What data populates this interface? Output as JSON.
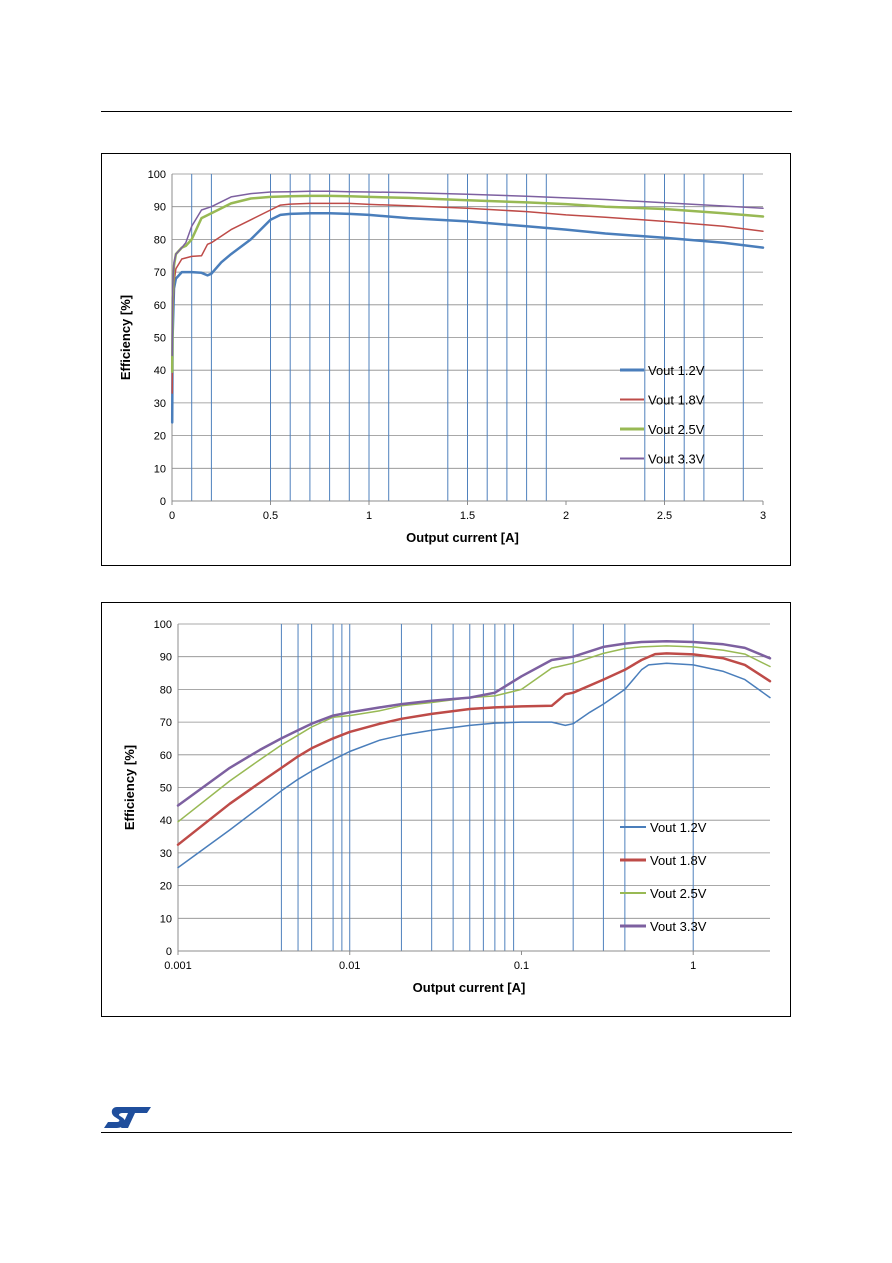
{
  "colors": {
    "v12": "#4a7ebb",
    "v18": "#be4b48",
    "v25": "#98b954",
    "v33": "#7d60a0",
    "grid": "#8c8c8c",
    "vline": "#4f81bd"
  },
  "chart_data": [
    {
      "type": "line",
      "xscale": "linear",
      "xlabel": "Output current [A]",
      "ylabel": "Efficiency [%]",
      "xlim": [
        0,
        3
      ],
      "ylim": [
        0,
        100
      ],
      "xticks": [
        "0",
        "0.5",
        "1",
        "1.5",
        "2",
        "2.5",
        "3"
      ],
      "yticks": [
        "0",
        "10",
        "20",
        "30",
        "40",
        "50",
        "60",
        "70",
        "80",
        "90",
        "100"
      ],
      "grid": true,
      "legend": "center-right",
      "vlines": [
        0.1,
        0.2,
        0.5,
        0.6,
        0.7,
        0.8,
        0.9,
        1.0,
        1.1,
        1.4,
        1.5,
        1.6,
        1.7,
        1.8,
        1.9,
        2.4,
        2.5,
        2.6,
        2.7,
        2.9
      ],
      "series": [
        {
          "name": "Vout 1.2V",
          "color": "#4a7ebb",
          "width": 2.5,
          "x": [
            0.001,
            0.003,
            0.01,
            0.02,
            0.05,
            0.1,
            0.15,
            0.18,
            0.2,
            0.25,
            0.3,
            0.4,
            0.5,
            0.55,
            0.6,
            0.7,
            0.8,
            0.9,
            1.0,
            1.2,
            1.5,
            1.8,
            2.0,
            2.2,
            2.5,
            2.8,
            3.0
          ],
          "y": [
            24,
            50,
            65,
            68,
            70,
            70,
            69.8,
            69,
            69.5,
            73,
            75.5,
            80,
            86,
            87.5,
            87.8,
            88,
            88,
            87.8,
            87.5,
            86.5,
            85.5,
            84,
            83,
            81.8,
            80.5,
            79,
            77.5
          ]
        },
        {
          "name": "Vout 1.8V",
          "color": "#be4b48",
          "width": 1.5,
          "x": [
            0.001,
            0.003,
            0.01,
            0.02,
            0.05,
            0.1,
            0.15,
            0.18,
            0.2,
            0.3,
            0.4,
            0.5,
            0.55,
            0.6,
            0.7,
            0.8,
            0.9,
            1.0,
            1.2,
            1.5,
            1.8,
            2.0,
            2.2,
            2.5,
            2.8,
            3.0
          ],
          "y": [
            33,
            55,
            67,
            71,
            74,
            74.8,
            75,
            78.5,
            79,
            83,
            86,
            89,
            90.5,
            90.8,
            91,
            91,
            91,
            90.7,
            90.3,
            89.5,
            88.5,
            87.5,
            86.8,
            85.5,
            84,
            82.5
          ]
        },
        {
          "name": "Vout 2.5V",
          "color": "#98b954",
          "width": 2.5,
          "x": [
            0.001,
            0.003,
            0.01,
            0.02,
            0.05,
            0.07,
            0.1,
            0.15,
            0.2,
            0.3,
            0.4,
            0.5,
            0.6,
            0.7,
            0.8,
            0.9,
            1.0,
            1.2,
            1.5,
            1.8,
            2.0,
            2.2,
            2.5,
            2.8,
            3.0
          ],
          "y": [
            39.5,
            62,
            72,
            75.5,
            77.5,
            78,
            80,
            86.5,
            88,
            91,
            92.5,
            93,
            93.2,
            93.3,
            93.3,
            93.2,
            93,
            92.7,
            92,
            91.3,
            90.8,
            90,
            89.3,
            88,
            87
          ]
        },
        {
          "name": "Vout 3.3V",
          "color": "#7d60a0",
          "width": 1.5,
          "x": [
            0.001,
            0.003,
            0.01,
            0.02,
            0.05,
            0.07,
            0.1,
            0.15,
            0.2,
            0.3,
            0.4,
            0.5,
            0.6,
            0.7,
            0.8,
            0.9,
            1.0,
            1.2,
            1.5,
            1.8,
            2.0,
            2.2,
            2.5,
            2.8,
            3.0
          ],
          "y": [
            44.5,
            65,
            73,
            75.5,
            77.5,
            79,
            84,
            89,
            90,
            93,
            94,
            94.5,
            94.6,
            94.7,
            94.7,
            94.6,
            94.5,
            94.3,
            93.8,
            93.2,
            92.7,
            92.2,
            91.2,
            90.2,
            89.5
          ]
        }
      ]
    },
    {
      "type": "line",
      "xscale": "log",
      "xlabel": "Output current [A]",
      "ylabel": "Efficiency [%]",
      "xlim": [
        0.001,
        2.8
      ],
      "ylim": [
        0,
        100
      ],
      "xticks": [
        {
          "v": 0.001,
          "label": "0.001"
        },
        {
          "v": 0.01,
          "label": "0.01"
        },
        {
          "v": 0.1,
          "label": "0.1"
        },
        {
          "v": 1,
          "label": "1"
        }
      ],
      "yticks": [
        "0",
        "10",
        "20",
        "30",
        "40",
        "50",
        "60",
        "70",
        "80",
        "90",
        "100"
      ],
      "grid": true,
      "legend": "center-right",
      "vlines": [
        0.004,
        0.005,
        0.006,
        0.008,
        0.009,
        0.01,
        0.02,
        0.03,
        0.04,
        0.05,
        0.06,
        0.07,
        0.08,
        0.09,
        0.2,
        0.3,
        0.4,
        1
      ],
      "series": [
        {
          "name": "Vout 1.2V",
          "color": "#4a7ebb",
          "width": 1.5,
          "x": [
            0.001,
            0.002,
            0.003,
            0.004,
            0.005,
            0.006,
            0.008,
            0.01,
            0.015,
            0.02,
            0.03,
            0.05,
            0.07,
            0.1,
            0.15,
            0.18,
            0.2,
            0.25,
            0.3,
            0.4,
            0.5,
            0.55,
            0.7,
            1.0,
            1.5,
            2.0,
            2.8
          ],
          "y": [
            25.5,
            37,
            44,
            49,
            52.5,
            55,
            58.5,
            61,
            64.5,
            66,
            67.5,
            69,
            69.7,
            70,
            70,
            69,
            69.5,
            73,
            75.5,
            80,
            86,
            87.5,
            88,
            87.5,
            85.5,
            83,
            77.5
          ]
        },
        {
          "name": "Vout 1.8V",
          "color": "#be4b48",
          "width": 2.5,
          "x": [
            0.001,
            0.002,
            0.003,
            0.004,
            0.005,
            0.006,
            0.008,
            0.01,
            0.015,
            0.02,
            0.03,
            0.05,
            0.07,
            0.1,
            0.15,
            0.18,
            0.2,
            0.3,
            0.4,
            0.5,
            0.6,
            0.7,
            1.0,
            1.5,
            2.0,
            2.8
          ],
          "y": [
            32.5,
            45,
            51.5,
            56,
            59.5,
            62,
            65,
            67,
            69.5,
            71,
            72.5,
            74,
            74.5,
            74.8,
            75,
            78.5,
            79,
            83,
            86,
            89,
            90.8,
            91,
            90.7,
            89.5,
            87.5,
            82.5
          ]
        },
        {
          "name": "Vout 2.5V",
          "color": "#98b954",
          "width": 1.5,
          "x": [
            0.001,
            0.002,
            0.003,
            0.004,
            0.005,
            0.006,
            0.008,
            0.01,
            0.015,
            0.02,
            0.03,
            0.05,
            0.07,
            0.1,
            0.15,
            0.2,
            0.3,
            0.4,
            0.5,
            0.7,
            1.0,
            1.5,
            2.0,
            2.8
          ],
          "y": [
            39.5,
            52,
            58.5,
            63,
            66,
            68.5,
            71.5,
            72,
            73.5,
            75,
            76,
            77.5,
            78,
            80,
            86.5,
            88,
            91,
            92.5,
            93,
            93.3,
            93,
            92,
            90.8,
            87
          ]
        },
        {
          "name": "Vout 3.3V",
          "color": "#7d60a0",
          "width": 2.5,
          "x": [
            0.001,
            0.002,
            0.003,
            0.004,
            0.005,
            0.006,
            0.008,
            0.01,
            0.015,
            0.02,
            0.03,
            0.05,
            0.07,
            0.1,
            0.15,
            0.2,
            0.3,
            0.4,
            0.5,
            0.7,
            1.0,
            1.5,
            2.0,
            2.8
          ],
          "y": [
            44.5,
            56,
            61.5,
            65,
            67.5,
            69.5,
            72,
            73,
            74.5,
            75.5,
            76.5,
            77.5,
            79,
            84,
            89,
            90,
            93,
            94,
            94.5,
            94.7,
            94.5,
            93.8,
            92.7,
            89.5
          ]
        }
      ]
    }
  ]
}
